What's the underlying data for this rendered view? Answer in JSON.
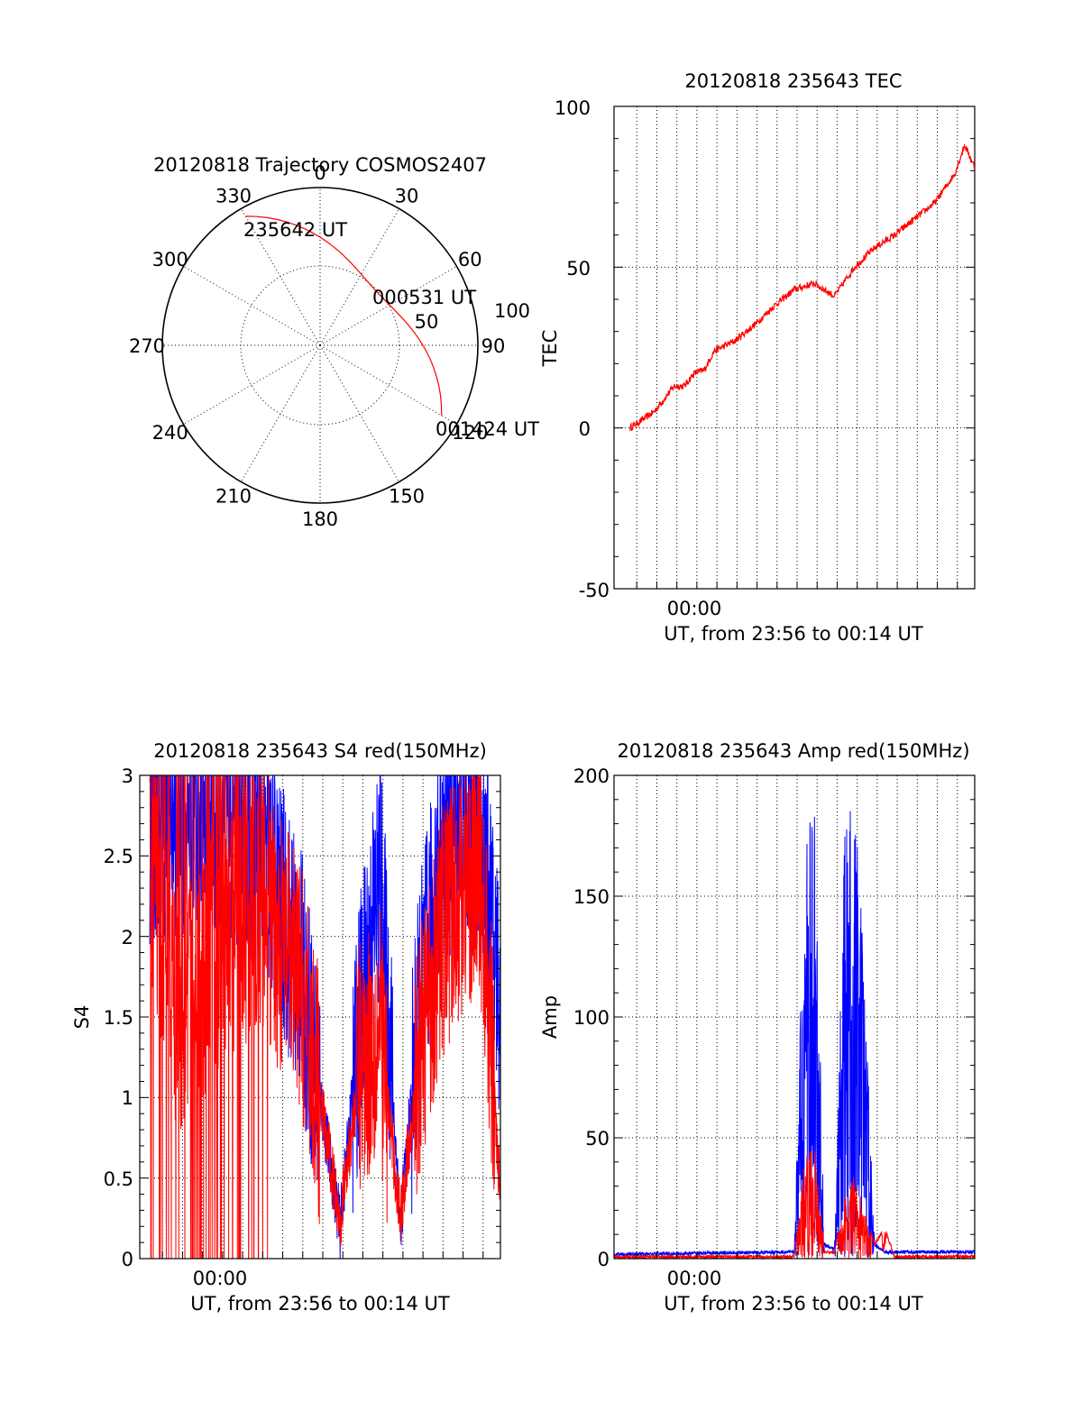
{
  "polar": {
    "title": "20120818 Trajectory COSMOS2407",
    "azimuth_labels": [
      "0",
      "30",
      "60",
      "90",
      "120",
      "150",
      "180",
      "210",
      "240",
      "270",
      "300",
      "330"
    ],
    "radial_labels": [
      "50",
      "100"
    ],
    "track_color": "#ff0000",
    "track": {
      "start_az": 330,
      "start_el": 5,
      "end_az": 120,
      "end_el": 10
    },
    "annotations": [
      "235642 UT",
      "000531 UT",
      "001424 UT"
    ]
  },
  "tec": {
    "title": "20120818 235643 TEC",
    "ylabel": "TEC",
    "xlabel": "UT, from 23:56 to 00:14 UT",
    "x_tick_label": "00:00",
    "y_ticks": [
      "-50",
      "0",
      "50",
      "100"
    ],
    "ylim": [
      -50,
      100
    ]
  },
  "s4": {
    "title": "20120818 235643 S4 red(150MHz)",
    "ylabel": "S4",
    "xlabel": "UT, from 23:56 to 00:14 UT",
    "x_tick_label": "00:00",
    "y_ticks": [
      "0",
      "0.5",
      "1",
      "1.5",
      "2",
      "2.5",
      "3"
    ],
    "ylim": [
      0,
      3
    ]
  },
  "amp": {
    "title": "20120818 235643 Amp red(150MHz)",
    "ylabel": "Amp",
    "xlabel": "UT, from 23:56 to 00:14 UT",
    "x_tick_label": "00:00",
    "y_ticks": [
      "0",
      "50",
      "100",
      "150",
      "200"
    ],
    "ylim": [
      0,
      200
    ]
  },
  "chart_data": [
    {
      "type": "line",
      "title": "20120818 235643 TEC",
      "xlabel": "UT, from 23:56 to 00:14 UT",
      "ylabel": "TEC",
      "xlim": [
        "23:56",
        "00:14"
      ],
      "ylim": [
        -50,
        100
      ],
      "grid": true,
      "series": [
        {
          "color": "#ff0000",
          "x": [
            "23:56.8",
            "23:58",
            "23:59",
            "23:59.5",
            "00:00",
            "00:00.5",
            "00:01",
            "00:02",
            "00:03",
            "00:04",
            "00:05",
            "00:06",
            "00:07",
            "00:08",
            "00:09",
            "00:10",
            "00:11",
            "00:12",
            "00:13",
            "00:13.5",
            "00:14"
          ],
          "y": [
            0,
            5,
            13,
            13,
            17,
            18,
            24,
            27,
            32,
            38,
            43,
            45,
            41,
            50,
            56,
            60,
            65,
            70,
            79,
            88,
            81
          ]
        }
      ]
    },
    {
      "type": "line",
      "title": "20120818 235643 S4 red(150MHz)",
      "xlabel": "UT, from 23:56 to 00:14 UT",
      "ylabel": "S4",
      "xlim": [
        "23:56",
        "00:14"
      ],
      "ylim": [
        0,
        3
      ],
      "grid": true,
      "series": [
        {
          "color": "#0000ff",
          "x": [
            "23:56.5",
            "23:58",
            "24:00",
            "00:02",
            "00:04",
            "00:06",
            "00:07",
            "00:08",
            "00:09",
            "00:10",
            "00:11",
            "00:12",
            "00:13",
            "00:14"
          ],
          "y": [
            2.7,
            2.8,
            2.8,
            2.6,
            1.8,
            0.2,
            1.5,
            2.4,
            0.2,
            1.6,
            2.5,
            2.8,
            2.6,
            1.6
          ]
        },
        {
          "color": "#ff0000",
          "x": [
            "23:56.5",
            "23:58",
            "24:00",
            "00:02",
            "00:04",
            "00:06",
            "00:07",
            "00:08",
            "00:09",
            "00:10",
            "00:11",
            "00:12",
            "00:13",
            "00:14"
          ],
          "y": [
            2.5,
            1.5,
            2.0,
            2.2,
            1.7,
            0.25,
            1.2,
            1.4,
            0.25,
            1.3,
            2.0,
            2.3,
            2.4,
            0.4
          ]
        }
      ]
    },
    {
      "type": "line",
      "title": "20120818 235643 Amp red(150MHz)",
      "xlabel": "UT, from 23:56 to 00:14 UT",
      "ylabel": "Amp",
      "xlim": [
        "23:56",
        "00:14"
      ],
      "ylim": [
        0,
        200
      ],
      "grid": true,
      "series": [
        {
          "color": "#0000ff",
          "x": [
            "23:56",
            "00:05",
            "00:05.5",
            "00:06",
            "00:06.5",
            "00:07",
            "00:07.5",
            "00:08",
            "00:08.5",
            "00:09",
            "00:09.5",
            "00:10",
            "00:14"
          ],
          "y": [
            1,
            2,
            170,
            195,
            5,
            3,
            175,
            195,
            120,
            5,
            2,
            2,
            2
          ]
        },
        {
          "color": "#ff0000",
          "x": [
            "23:56",
            "00:05",
            "00:05.5",
            "00:06",
            "00:06.5",
            "00:07",
            "00:07.5",
            "00:08",
            "00:08.5",
            "00:09",
            "00:09.5",
            "00:10",
            "00:14"
          ],
          "y": [
            0,
            0,
            40,
            50,
            2,
            2,
            25,
            35,
            20,
            5,
            12,
            0,
            0
          ]
        }
      ]
    }
  ]
}
